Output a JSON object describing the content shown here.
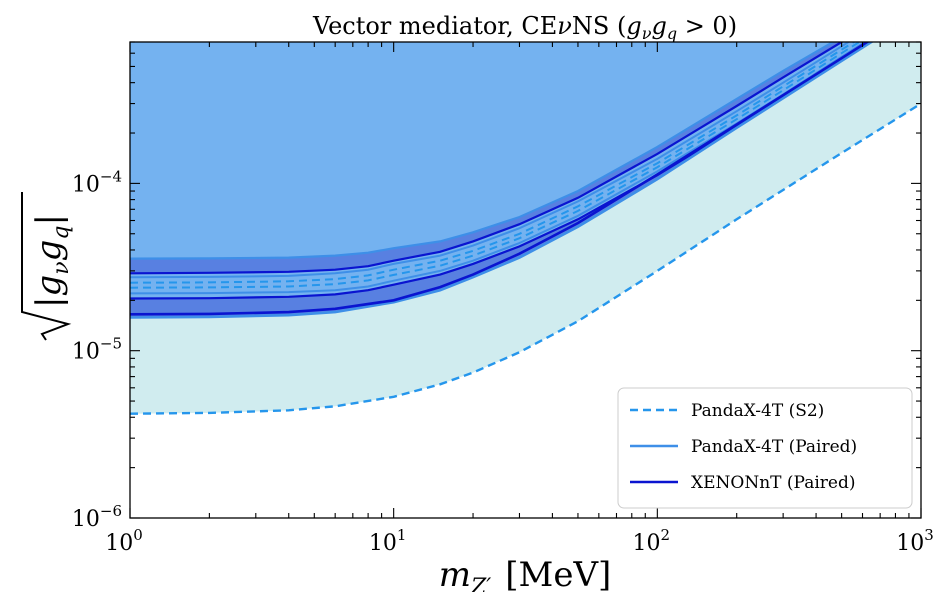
{
  "chart_data": {
    "type": "area",
    "title": "Vector mediator, CEνNS (g_ν g_q > 0)",
    "title_parts": {
      "prefix": "Vector mediator, CE",
      "nu": "ν",
      "mid": "NS (",
      "g": "g",
      "sub_nu": "ν",
      "g2": "g",
      "sub_q": "q",
      "suffix": " > 0)"
    },
    "xlabel": "m_{Z'} [MeV]",
    "xlabel_parts": {
      "m": "m",
      "sub": "Z′",
      "unit": "[MeV]"
    },
    "ylabel": "√|g_ν g_q|",
    "ylabel_parts": {
      "g": "g",
      "sub_nu": "ν",
      "g2": "g",
      "sub_q": "q"
    },
    "xscale": "log",
    "yscale": "log",
    "xlim": [
      1,
      1000
    ],
    "ylim": [
      1e-06,
      0.0007
    ],
    "x_ticks": [
      {
        "value": 1,
        "base": "10",
        "exp": "0"
      },
      {
        "value": 10,
        "base": "10",
        "exp": "1"
      },
      {
        "value": 100,
        "base": "10",
        "exp": "2"
      },
      {
        "value": 1000,
        "base": "10",
        "exp": "3"
      }
    ],
    "y_ticks": [
      {
        "value": 1e-06,
        "base": "10",
        "exp": "−6"
      },
      {
        "value": 1e-05,
        "base": "10",
        "exp": "−5"
      },
      {
        "value": 0.0001,
        "base": "10",
        "exp": "−4"
      }
    ],
    "grid": false,
    "legend_position": "bottom-right",
    "colors": {
      "excluded_region": "#74b2f0",
      "s2_band": "#d0ecef",
      "pandax_s2": "#2596ec",
      "pandax_paired": "#3e8fe8",
      "xenon_paired": "#0a14d0",
      "band_fill": "#4f82e2",
      "dark_band": "#4f6fdc"
    },
    "series": [
      {
        "name": "PandaX-4T (S2)",
        "style": "dashed",
        "x": [
          1,
          2,
          4,
          6,
          10,
          15,
          20,
          30,
          50,
          100,
          200,
          500,
          1000
        ],
        "y": [
          4.2e-06,
          4.25e-06,
          4.4e-06,
          4.65e-06,
          5.3e-06,
          6.3e-06,
          7.4e-06,
          9.8e-06,
          1.5e-05,
          3e-05,
          6.1e-05,
          0.000152,
          0.0003
        ]
      },
      {
        "name": "PandaX-4T (Paired)",
        "style": "solid",
        "x": [
          1,
          2,
          4,
          6,
          10,
          15,
          20,
          30,
          50,
          100,
          200,
          500,
          1000
        ],
        "y": [
          1.58e-05,
          1.59e-05,
          1.63e-05,
          1.7e-05,
          1.95e-05,
          2.3e-05,
          2.75e-05,
          3.6e-05,
          5.5e-05,
          0.000106,
          0.000215,
          0.00054,
          0.00108
        ]
      },
      {
        "name": "XENONnT (Paired)",
        "style": "solid",
        "x": [
          1,
          2,
          4,
          6,
          10,
          15,
          20,
          30,
          50,
          100,
          200,
          500,
          1000
        ],
        "y": [
          1.65e-05,
          1.66e-05,
          1.7e-05,
          1.78e-05,
          2e-05,
          2.4e-05,
          2.85e-05,
          3.8e-05,
          5.8e-05,
          0.000113,
          0.000225,
          0.00056,
          0.00112
        ]
      }
    ],
    "bands": {
      "outer_upper": {
        "x": [
          1,
          2,
          4,
          6,
          8,
          10,
          15,
          20,
          30,
          50,
          100,
          200,
          300,
          500
        ],
        "y": [
          3.55e-05,
          3.56e-05,
          3.6e-05,
          3.7e-05,
          3.85e-05,
          4.1e-05,
          4.5e-05,
          5.1e-05,
          6.3e-05,
          9e-05,
          0.000165,
          0.00032,
          0.00047,
          0.00075
        ]
      },
      "xenon_upper": {
        "x": [
          1,
          2,
          4,
          6,
          8,
          10,
          15,
          20,
          30,
          50,
          100,
          200,
          300,
          500
        ],
        "y": [
          2.9e-05,
          2.92e-05,
          2.96e-05,
          3.05e-05,
          3.2e-05,
          3.45e-05,
          3.9e-05,
          4.5e-05,
          5.7e-05,
          8.2e-05,
          0.00015,
          0.00029,
          0.00043,
          0.0007
        ]
      },
      "inner_upper": {
        "x": [
          1,
          2,
          4,
          6,
          8,
          10,
          15,
          20,
          30,
          50,
          100,
          200,
          300,
          500
        ],
        "y": [
          2.75e-05,
          2.76e-05,
          2.8e-05,
          2.9e-05,
          3.05e-05,
          3.3e-05,
          3.7e-05,
          4.25e-05,
          5.4e-05,
          7.8e-05,
          0.00014,
          0.00027,
          0.0004,
          0.00066
        ]
      },
      "inner_lower": {
        "x": [
          1,
          2,
          4,
          6,
          8,
          10,
          15,
          20,
          30,
          50,
          100,
          200,
          300,
          500
        ],
        "y": [
          2.2e-05,
          2.21e-05,
          2.24e-05,
          2.3e-05,
          2.42e-05,
          2.62e-05,
          3e-05,
          3.45e-05,
          4.4e-05,
          6.4e-05,
          0.000118,
          0.000228,
          0.00034,
          0.00057
        ]
      },
      "xenon_lower": {
        "x": [
          1,
          2,
          4,
          6,
          8,
          10,
          15,
          20,
          30,
          50,
          100,
          200,
          300,
          500
        ],
        "y": [
          2.05e-05,
          2.06e-05,
          2.1e-05,
          2.17e-05,
          2.3e-05,
          2.48e-05,
          2.85e-05,
          3.3e-05,
          4.2e-05,
          6.1e-05,
          0.000112,
          0.000218,
          0.00033,
          0.00055
        ]
      },
      "s2_upper_dashed": {
        "x": [
          1,
          2,
          4,
          6,
          8,
          10,
          15,
          20,
          30,
          50,
          100,
          200,
          300,
          500
        ],
        "y": [
          2.55e-05,
          2.56e-05,
          2.6e-05,
          2.68e-05,
          2.82e-05,
          3.05e-05,
          3.45e-05,
          3.95e-05,
          5e-05,
          7.3e-05,
          0.000132,
          0.000255,
          0.00038,
          0.00063
        ]
      },
      "s2_lower_dashed": {
        "x": [
          1,
          2,
          4,
          6,
          8,
          10,
          15,
          20,
          30,
          50,
          100,
          200,
          300,
          500
        ],
        "y": [
          2.38e-05,
          2.39e-05,
          2.42e-05,
          2.5e-05,
          2.63e-05,
          2.84e-05,
          3.22e-05,
          3.7e-05,
          4.7e-05,
          6.85e-05,
          0.000125,
          0.000242,
          0.00036,
          0.0006
        ]
      }
    }
  }
}
